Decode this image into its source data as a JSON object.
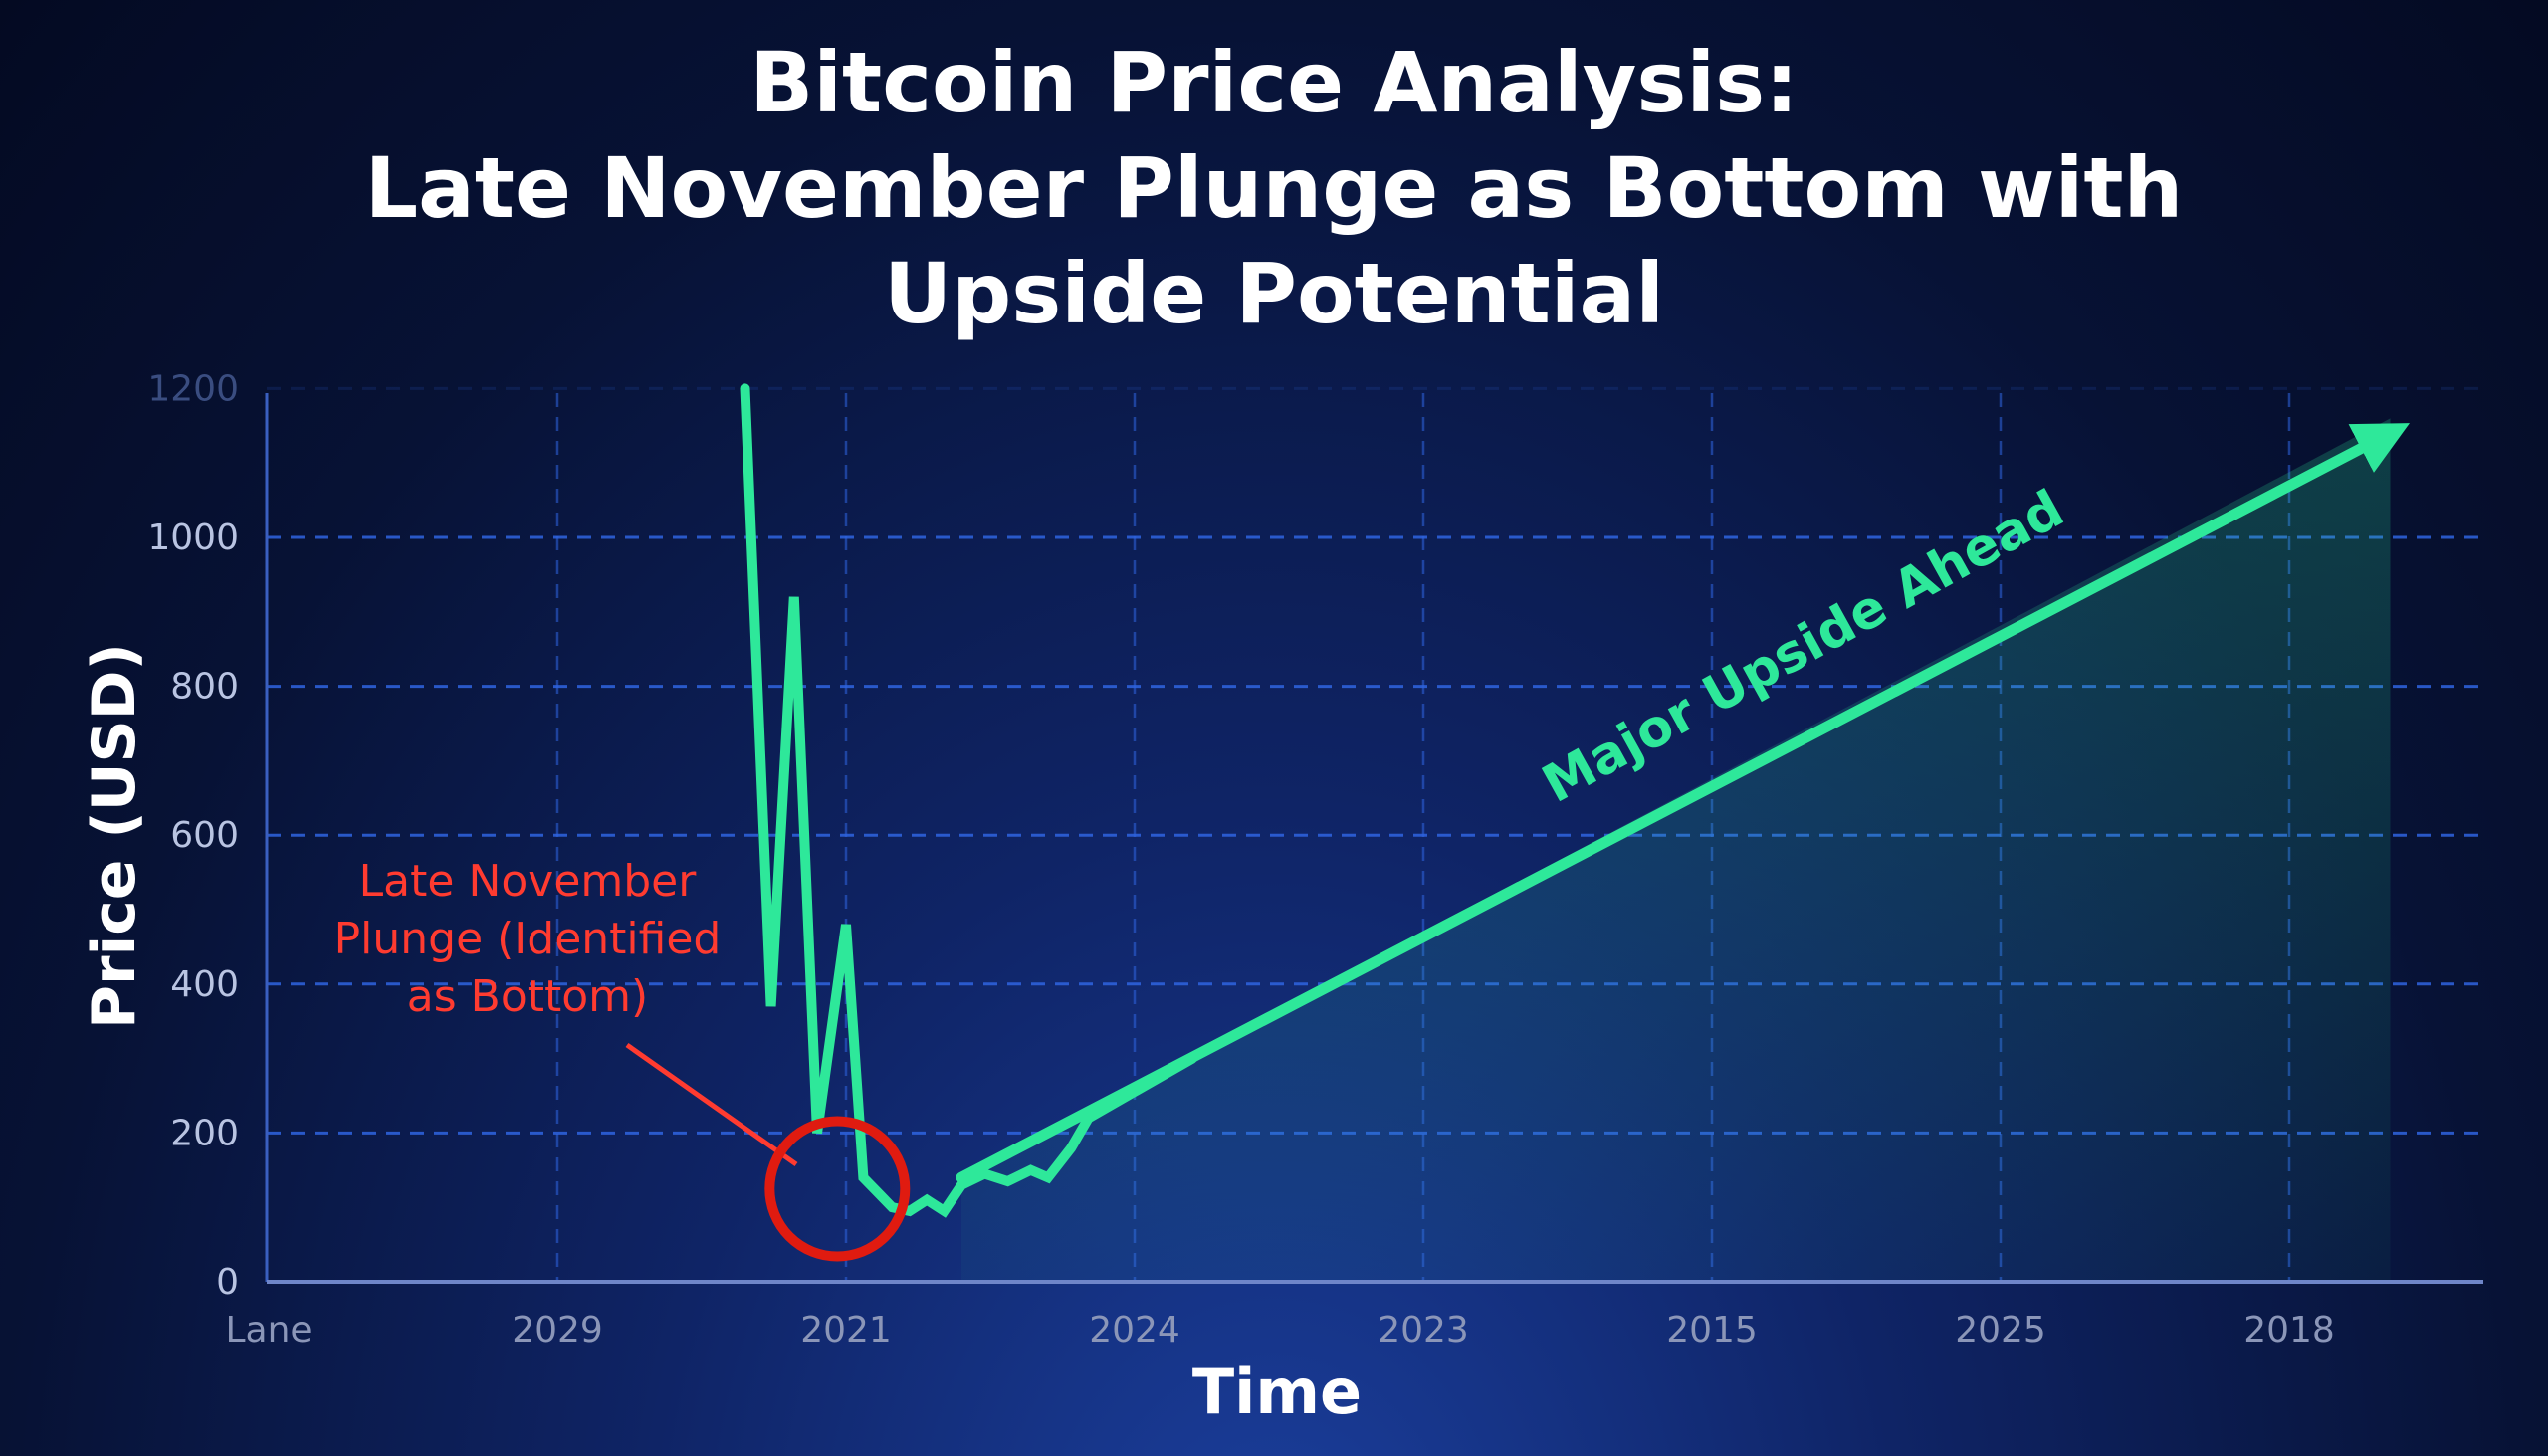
{
  "chart_data": {
    "type": "line",
    "title_lines": [
      "Bitcoin Price Analysis:",
      "Late November Plunge as Bottom with",
      "Upside Potential"
    ],
    "xlabel": "Time",
    "ylabel": "Price (USD)",
    "categories": [
      "Lane",
      "2029",
      "2021",
      "2024",
      "2023",
      "2015",
      "2025",
      "2018"
    ],
    "y_ticks": [
      0,
      200,
      400,
      600,
      800,
      1000,
      1200
    ],
    "ylim": [
      0,
      1200
    ],
    "grid": true,
    "series": [
      {
        "color": "#2ee89a",
        "points": [
          [
            1.65,
            1200
          ],
          [
            1.74,
            370
          ],
          [
            1.82,
            920
          ],
          [
            1.9,
            200
          ],
          [
            2.0,
            480
          ],
          [
            2.06,
            140
          ],
          [
            2.16,
            100
          ],
          [
            2.22,
            95
          ],
          [
            2.28,
            110
          ],
          [
            2.34,
            95
          ],
          [
            2.4,
            130
          ],
          [
            2.48,
            145
          ],
          [
            2.56,
            135
          ],
          [
            2.64,
            150
          ],
          [
            2.7,
            140
          ],
          [
            2.78,
            180
          ],
          [
            2.84,
            220
          ],
          [
            3.2,
            300
          ]
        ]
      }
    ],
    "trend_arrow": {
      "from": [
        2.4,
        140
      ],
      "to": [
        7.35,
        1140
      ],
      "color": "#2ee89a"
    },
    "shaded_area_end": [
      7.35,
      1160
    ],
    "annotations": [
      {
        "id": "bottom",
        "lines": [
          "Late November",
          "Plunge (Identified",
          "as Bottom)"
        ],
        "color": "#ff3b30",
        "circle_at": [
          1.97,
          125
        ]
      },
      {
        "id": "upside",
        "text": "Major Upside Ahead",
        "color": "#2ee89a"
      }
    ]
  }
}
